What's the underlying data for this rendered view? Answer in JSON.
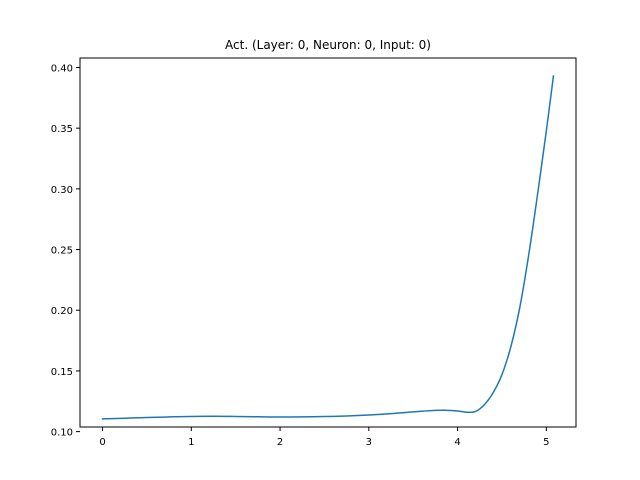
{
  "chart_data": {
    "type": "line",
    "title": "Act. (Layer: 0, Neuron: 0, Input: 0)",
    "xlabel": "",
    "ylabel": "",
    "xlim": [
      -0.254,
      5.334
    ],
    "ylim": [
      0.1038,
      0.4078
    ],
    "xticks": [
      0,
      1,
      2,
      3,
      4,
      5
    ],
    "xtick_labels": [
      "0",
      "1",
      "2",
      "3",
      "4",
      "5"
    ],
    "yticks": [
      0.1,
      0.15,
      0.2,
      0.25,
      0.3,
      0.35,
      0.4
    ],
    "ytick_labels": [
      "0.10",
      "0.15",
      "0.20",
      "0.25",
      "0.30",
      "0.35",
      "0.40"
    ],
    "grid": false,
    "series": [
      {
        "color": "#1f77b4",
        "x": [
          0.0,
          0.25,
          0.5,
          0.75,
          1.0,
          1.25,
          1.5,
          1.75,
          2.0,
          2.25,
          2.5,
          2.75,
          3.0,
          3.25,
          3.5,
          3.75,
          3.85,
          4.0,
          4.1,
          4.2,
          4.3,
          4.4,
          4.5,
          4.6,
          4.7,
          4.8,
          4.9,
          5.0,
          5.08
        ],
        "y": [
          0.1105,
          0.111,
          0.1116,
          0.1121,
          0.1125,
          0.1127,
          0.1125,
          0.1122,
          0.112,
          0.1121,
          0.1124,
          0.1129,
          0.1137,
          0.1148,
          0.1163,
          0.1175,
          0.1176,
          0.117,
          0.116,
          0.1165,
          0.122,
          0.132,
          0.147,
          0.17,
          0.202,
          0.245,
          0.295,
          0.348,
          0.393
        ]
      }
    ]
  }
}
